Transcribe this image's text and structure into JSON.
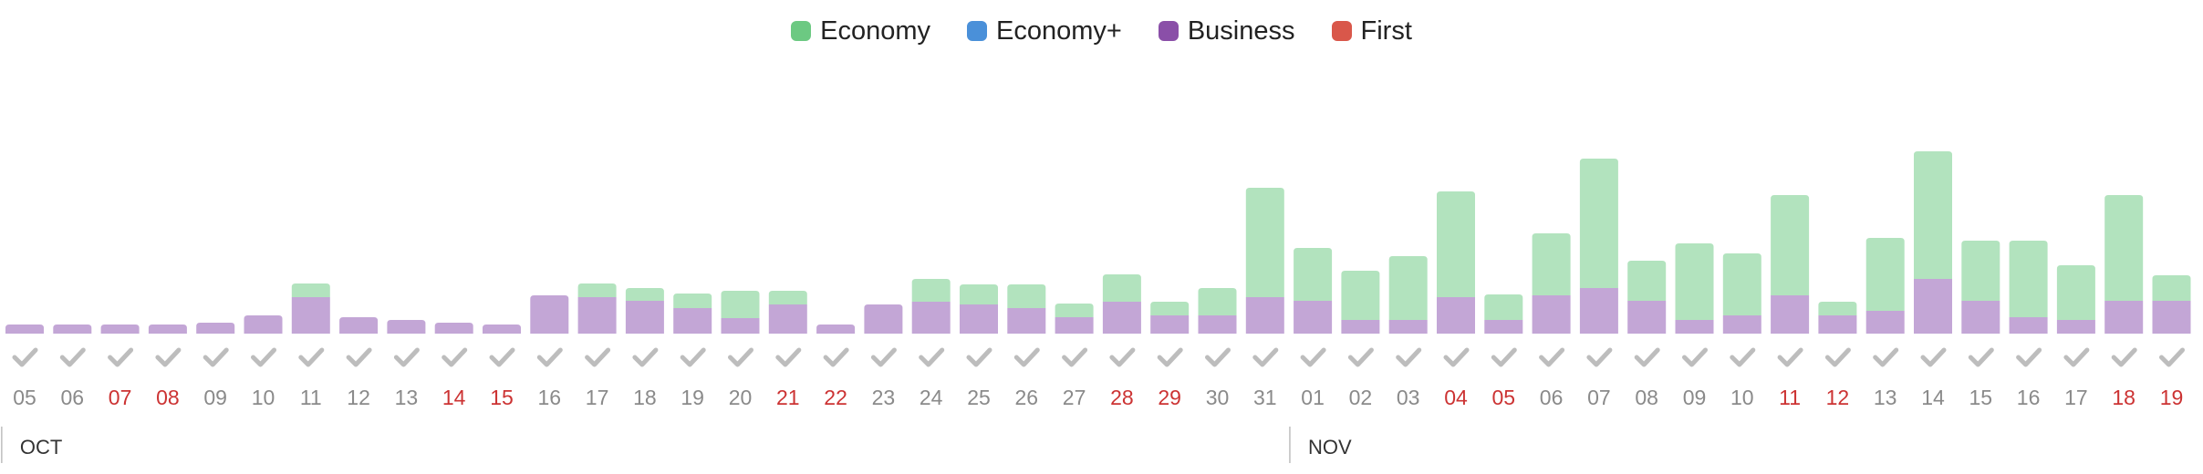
{
  "legend": [
    {
      "name": "Economy",
      "color": "#6cc982"
    },
    {
      "name": "Economy+",
      "color": "#4a90d9"
    },
    {
      "name": "Business",
      "color": "#8a4fa8"
    },
    {
      "name": "First",
      "color": "#d9574a"
    }
  ],
  "colors": {
    "economy_fill": "#b2e3be",
    "business_fill": "#c3a6d6",
    "check": "#bdbdbd",
    "tick_normal": "#8a8a8a",
    "tick_weekend": "#cc3333",
    "month": "#333333",
    "month_divider": "#bdbdbd"
  },
  "icons": {
    "availability": "checkmark-icon"
  },
  "chart_data": {
    "type": "bar",
    "stacked": true,
    "months": [
      {
        "label": "OCT",
        "start_index": 0
      },
      {
        "label": "NOV",
        "start_index": 27
      }
    ],
    "categories": [
      "05",
      "06",
      "07",
      "08",
      "09",
      "10",
      "11",
      "12",
      "13",
      "14",
      "15",
      "16",
      "17",
      "18",
      "19",
      "20",
      "21",
      "22",
      "23",
      "24",
      "25",
      "26",
      "27",
      "28",
      "29",
      "30",
      "31",
      "01",
      "02",
      "03",
      "04",
      "05",
      "06",
      "07",
      "08",
      "09",
      "10",
      "11",
      "12",
      "13",
      "14",
      "15",
      "16",
      "17",
      "18",
      "19"
    ],
    "highlighted": [
      false,
      false,
      true,
      true,
      false,
      false,
      false,
      false,
      false,
      true,
      true,
      false,
      false,
      false,
      false,
      false,
      true,
      true,
      false,
      false,
      false,
      false,
      false,
      true,
      true,
      false,
      false,
      false,
      false,
      false,
      true,
      true,
      false,
      false,
      false,
      false,
      false,
      true,
      true,
      false,
      false,
      false,
      false,
      false,
      true,
      true
    ],
    "series": [
      {
        "name": "Business",
        "values": [
          1.0,
          1.0,
          1.0,
          1.0,
          1.2,
          2.0,
          4.0,
          1.8,
          1.5,
          1.2,
          1.0,
          4.2,
          4.0,
          3.6,
          2.8,
          1.7,
          3.2,
          1.0,
          3.2,
          3.5,
          3.2,
          2.8,
          1.8,
          3.5,
          2.0,
          2.0,
          4.0,
          3.6,
          1.5,
          1.5,
          4.0,
          1.5,
          4.2,
          5.0,
          3.6,
          1.5,
          2.0,
          4.2,
          2.0,
          2.5,
          6.0,
          3.6,
          1.8,
          1.5,
          3.6,
          3.6
        ]
      },
      {
        "name": "Economy",
        "values": [
          0,
          0,
          0,
          0,
          0,
          0,
          1.5,
          0,
          0,
          0,
          0,
          0,
          1.5,
          1.4,
          1.6,
          3.0,
          1.5,
          0,
          0,
          2.5,
          2.2,
          2.6,
          1.5,
          3.0,
          1.5,
          3.0,
          12.0,
          5.8,
          5.4,
          7.0,
          11.6,
          2.8,
          6.8,
          14.2,
          4.4,
          8.4,
          6.8,
          11.0,
          1.5,
          8.0,
          14.0,
          6.6,
          8.4,
          6.0,
          11.6,
          2.8
        ]
      },
      {
        "name": "Economy+",
        "values": [
          0,
          0,
          0,
          0,
          0,
          0,
          0,
          0,
          0,
          0,
          0,
          0,
          0,
          0,
          0,
          0,
          0,
          0,
          0,
          0,
          0,
          0,
          0,
          0,
          0,
          0,
          0,
          0,
          0,
          0,
          0,
          0,
          0,
          0,
          0,
          0,
          0,
          0,
          0,
          0,
          0,
          0,
          0,
          0,
          0,
          0
        ]
      },
      {
        "name": "First",
        "values": [
          0,
          0,
          0,
          0,
          0,
          0,
          0,
          0,
          0,
          0,
          0,
          0,
          0,
          0,
          0,
          0,
          0,
          0,
          0,
          0,
          0,
          0,
          0,
          0,
          0,
          0,
          0,
          0,
          0,
          0,
          0,
          0,
          0,
          0,
          0,
          0,
          0,
          0,
          0,
          0,
          0,
          0,
          0,
          0,
          0,
          0
        ]
      }
    ],
    "ylim": [
      0,
      20
    ],
    "grid": false,
    "legend_position": "top-center"
  }
}
